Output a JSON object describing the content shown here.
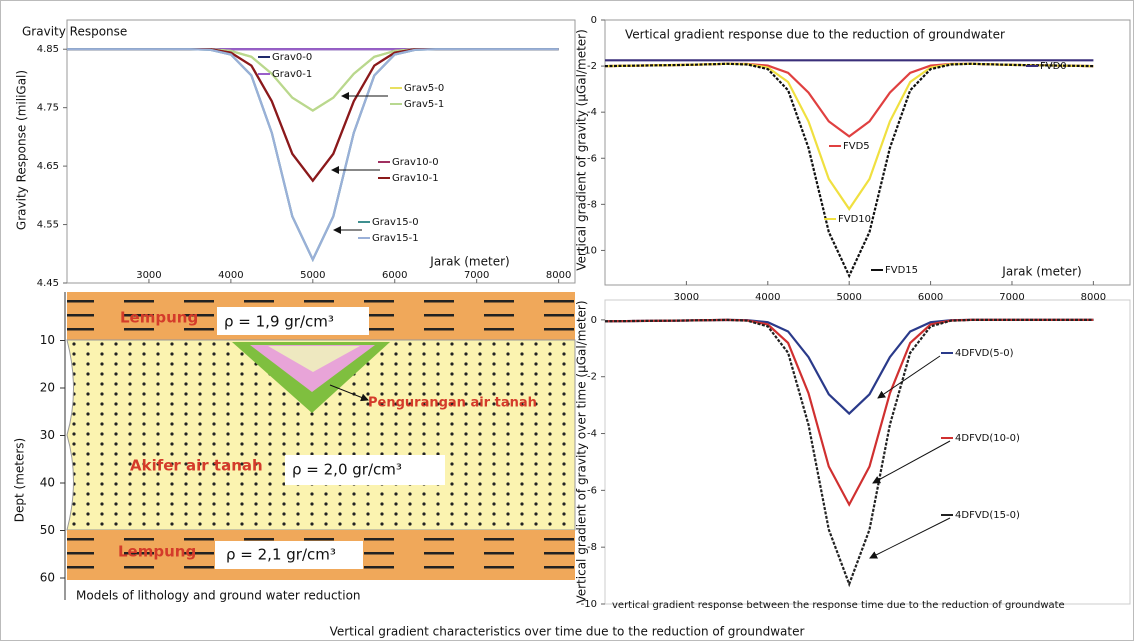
{
  "chart_data": [
    {
      "type": "line",
      "title": "Gravity Response",
      "x_label": "Jarak (meter)",
      "y_label": "Gravity Response  (miliGal)",
      "x": [
        2000,
        3000,
        3500,
        3750,
        4000,
        4250,
        4500,
        4750,
        5000,
        5250,
        5500,
        5750,
        6000,
        6250,
        6500,
        7000,
        8000
      ],
      "xlim": [
        2000,
        8200
      ],
      "xticks": [
        3000,
        4000,
        5000,
        6000,
        7000,
        8000
      ],
      "ylim": [
        4.45,
        4.9
      ],
      "yticks": [
        4.45,
        4.55,
        4.65,
        4.75,
        4.85
      ],
      "series": [
        {
          "name": "Grav0-0",
          "color": "#1f2a6b",
          "values": [
            4.85,
            4.85,
            4.85,
            4.85,
            4.85,
            4.85,
            4.85,
            4.85,
            4.85,
            4.85,
            4.85,
            4.85,
            4.85,
            4.85,
            4.85,
            4.85,
            4.85
          ]
        },
        {
          "name": "Grav0-1",
          "color": "#9a5fc9",
          "values": [
            4.85,
            4.85,
            4.85,
            4.85,
            4.85,
            4.85,
            4.85,
            4.85,
            4.85,
            4.85,
            4.85,
            4.85,
            4.85,
            4.85,
            4.85,
            4.85,
            4.85
          ]
        },
        {
          "name": "Grav5-0",
          "color": "#e8e060",
          "values": [
            4.85,
            4.85,
            4.85,
            4.85,
            4.847,
            4.837,
            4.808,
            4.767,
            4.745,
            4.767,
            4.808,
            4.837,
            4.847,
            4.85,
            4.85,
            4.85,
            4.85
          ]
        },
        {
          "name": "Grav5-1",
          "color": "#b8d890",
          "values": [
            4.85,
            4.85,
            4.85,
            4.85,
            4.847,
            4.837,
            4.808,
            4.767,
            4.745,
            4.767,
            4.808,
            4.837,
            4.847,
            4.85,
            4.85,
            4.85,
            4.85
          ]
        },
        {
          "name": "Grav10-0",
          "color": "#a03060",
          "values": [
            4.85,
            4.85,
            4.85,
            4.85,
            4.844,
            4.822,
            4.761,
            4.671,
            4.625,
            4.671,
            4.761,
            4.822,
            4.844,
            4.85,
            4.85,
            4.85,
            4.85
          ]
        },
        {
          "name": "Grav10-1",
          "color": "#8b1a1a",
          "values": [
            4.85,
            4.85,
            4.85,
            4.85,
            4.844,
            4.822,
            4.761,
            4.671,
            4.625,
            4.671,
            4.761,
            4.822,
            4.844,
            4.85,
            4.85,
            4.85,
            4.85
          ]
        },
        {
          "name": "Grav15-0",
          "color": "#3f8f8f",
          "values": [
            4.85,
            4.85,
            4.85,
            4.849,
            4.841,
            4.805,
            4.707,
            4.564,
            4.49,
            4.564,
            4.707,
            4.805,
            4.841,
            4.849,
            4.85,
            4.85,
            4.85
          ]
        },
        {
          "name": "Grav15-1",
          "color": "#9ab0d8",
          "values": [
            4.85,
            4.85,
            4.85,
            4.849,
            4.841,
            4.805,
            4.707,
            4.564,
            4.49,
            4.564,
            4.707,
            4.805,
            4.841,
            4.849,
            4.85,
            4.85,
            4.85
          ]
        }
      ]
    },
    {
      "type": "line",
      "title": "Vertical gradient response due to the reduction of groundwater",
      "x_label": "Jarak (meter)",
      "y_label": "Vertical gradient of gravity (µGal/meter)",
      "x": [
        2000,
        3000,
        3500,
        3750,
        4000,
        4250,
        4500,
        4750,
        5000,
        5250,
        5500,
        5750,
        6000,
        6250,
        6500,
        7000,
        8000
      ],
      "xlim": [
        2000,
        8450
      ],
      "xticks": [
        3000,
        4000,
        5000,
        6000,
        7000,
        8000
      ],
      "ylim": [
        -11.5,
        0
      ],
      "yticks": [
        0,
        -2,
        -4,
        -6,
        -8,
        -10
      ],
      "series": [
        {
          "name": "FVD0",
          "color": "#3a2f7a",
          "values": [
            -1.75,
            -1.75,
            -1.75,
            -1.75,
            -1.75,
            -1.75,
            -1.75,
            -1.75,
            -1.75,
            -1.75,
            -1.75,
            -1.75,
            -1.75,
            -1.75,
            -1.75,
            -1.75,
            -1.75
          ]
        },
        {
          "name": "FVD5",
          "color": "#e04040",
          "values": [
            -2.0,
            -1.95,
            -1.9,
            -1.91,
            -1.98,
            -2.29,
            -3.15,
            -4.4,
            -5.05,
            -4.4,
            -3.15,
            -2.29,
            -1.98,
            -1.91,
            -1.9,
            -1.95,
            -2.0
          ]
        },
        {
          "name": "FVD10",
          "color": "#f0e040",
          "values": [
            -2.0,
            -1.95,
            -1.9,
            -1.92,
            -2.06,
            -2.69,
            -4.4,
            -6.9,
            -8.2,
            -6.9,
            -4.4,
            -2.69,
            -2.06,
            -1.92,
            -1.9,
            -1.95,
            -2.0
          ]
        },
        {
          "name": "FVD15",
          "color": "#111111",
          "values": [
            -2.0,
            -1.95,
            -1.9,
            -1.93,
            -2.13,
            -3.05,
            -5.55,
            -9.2,
            -11.1,
            -9.2,
            -5.55,
            -3.05,
            -2.13,
            -1.93,
            -1.9,
            -1.95,
            -2.0
          ]
        }
      ]
    },
    {
      "type": "line",
      "title": "vertical gradient response between the response time due to the reduction of groundwate",
      "y_label": "Vertical gradient of gravity over time (µGal/meter)",
      "x": [
        2000,
        3000,
        3500,
        3750,
        4000,
        4250,
        4500,
        4750,
        5000,
        5250,
        5500,
        5750,
        6000,
        6250,
        6500,
        7000,
        8000
      ],
      "xlim": [
        2000,
        8450
      ],
      "ylim": [
        -10,
        0.7
      ],
      "yticks": [
        0,
        -2,
        -4,
        -6,
        -8,
        -10
      ],
      "series": [
        {
          "name": "4DFVD(5-0)",
          "color": "#2a3a8a",
          "values": [
            -0.05,
            -0.02,
            0,
            -0.01,
            -0.08,
            -0.41,
            -1.31,
            -2.62,
            -3.3,
            -2.62,
            -1.31,
            -0.41,
            -0.08,
            -0.01,
            0,
            0,
            0
          ]
        },
        {
          "name": "4DFVD(10-0)",
          "color": "#d03030",
          "values": [
            -0.05,
            -0.02,
            0,
            -0.02,
            -0.16,
            -0.81,
            -2.58,
            -5.16,
            -6.5,
            -5.16,
            -2.58,
            -0.81,
            -0.16,
            -0.02,
            0,
            0,
            0
          ]
        },
        {
          "name": "4DFVD(15-0)",
          "color": "#222222",
          "values": [
            -0.05,
            -0.02,
            0,
            -0.03,
            -0.23,
            -1.16,
            -3.69,
            -7.38,
            -9.3,
            -7.38,
            -3.69,
            -1.16,
            -0.23,
            -0.03,
            0,
            0,
            0
          ]
        }
      ]
    }
  ],
  "lithology": {
    "title": "Models of lithology  and ground water reduction",
    "y_label": "Dept (meters)",
    "depth_ticks": [
      10,
      20,
      30,
      40,
      50,
      60
    ],
    "top_layer": {
      "name": "Lempung",
      "density": "ρ = 1,9 gr/cm³"
    },
    "reduction": "Pengurangan air tanah",
    "aquifer": {
      "name": "Akifer air tanah",
      "density": "ρ = 2,0 gr/cm³"
    },
    "bottom_layer": {
      "name": "Lempung",
      "density": "ρ = 2,1 gr/cm³"
    }
  },
  "caption": "Vertical gradient characteristics  over time due to the reduction of groundwater"
}
